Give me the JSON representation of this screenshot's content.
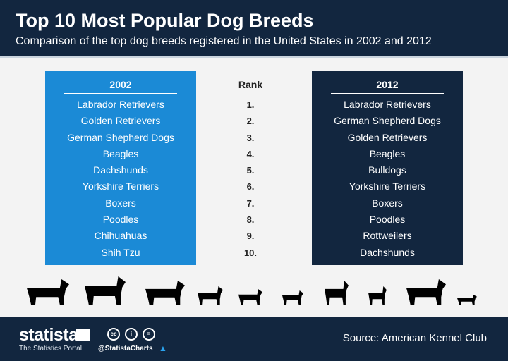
{
  "header": {
    "title": "Top 10 Most Popular Dog Breeds",
    "subtitle": "Comparison of the top dog breeds registered in the United States in 2002 and 2012"
  },
  "chart_data": {
    "type": "table",
    "title": "Top 10 Most Popular Dog Breeds",
    "columns": [
      "2002",
      "Rank",
      "2012"
    ],
    "ranks": [
      "1.",
      "2.",
      "3.",
      "4.",
      "5.",
      "6.",
      "7.",
      "8.",
      "9.",
      "10."
    ],
    "y2002": [
      "Labrador Retrievers",
      "Golden Retrievers",
      "German Shepherd Dogs",
      "Beagles",
      "Dachshunds",
      "Yorkshire Terriers",
      "Boxers",
      "Poodles",
      "Chihuahuas",
      "Shih Tzu"
    ],
    "y2012": [
      "Labrador Retrievers",
      "German Shepherd Dogs",
      "Golden Retrievers",
      "Beagles",
      "Bulldogs",
      "Yorkshire Terriers",
      "Boxers",
      "Poodles",
      "Rottweilers",
      "Dachshunds"
    ]
  },
  "footer": {
    "brand": "statista",
    "tagline": "The Statistics Portal",
    "handle": "@StatistaCharts",
    "source": "Source:  American Kennel Club",
    "cc_icons": [
      "cc",
      "by",
      "nd"
    ]
  },
  "colors": {
    "header": "#12263f",
    "col2002": "#1b8ad6",
    "col2012": "#12263f"
  }
}
